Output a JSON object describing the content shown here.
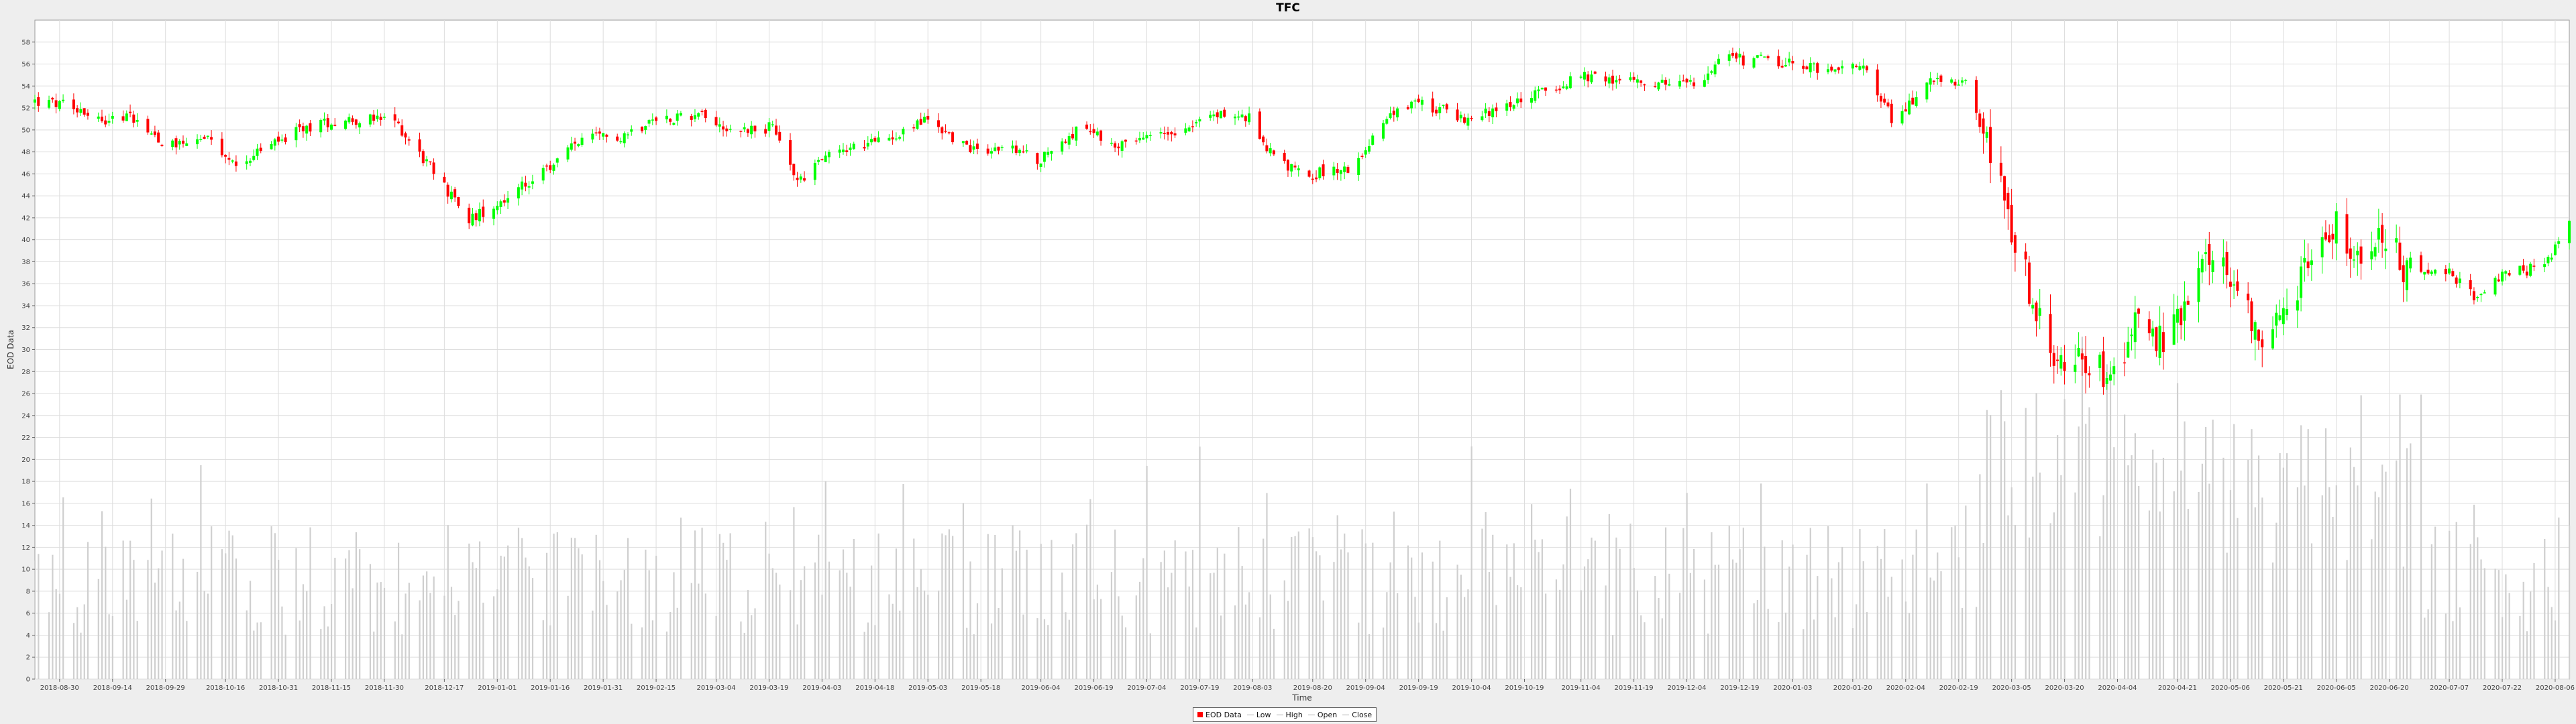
{
  "chart_data": {
    "type": "candlestick",
    "title": "TFC",
    "xlabel": "Time",
    "ylabel": "EOD Data",
    "ylim": [
      0,
      60
    ],
    "y_ticks": [
      0,
      2,
      4,
      6,
      8,
      10,
      12,
      14,
      16,
      18,
      20,
      22,
      24,
      26,
      28,
      30,
      32,
      34,
      36,
      38,
      40,
      42,
      44,
      46,
      48,
      50,
      52,
      54,
      56,
      58
    ],
    "x_range": [
      "2018-08-23",
      "2020-08-10"
    ],
    "x_ticks": [
      "2018-08-30",
      "2018-09-14",
      "2018-09-29",
      "2018-10-16",
      "2018-10-31",
      "2018-11-15",
      "2018-11-30",
      "2018-12-17",
      "2019-01-01",
      "2019-01-16",
      "2019-01-31",
      "2019-02-15",
      "2019-03-04",
      "2019-03-19",
      "2019-04-03",
      "2019-04-18",
      "2019-05-03",
      "2019-05-18",
      "2019-06-04",
      "2019-06-19",
      "2019-07-04",
      "2019-07-19",
      "2019-08-03",
      "2019-08-20",
      "2019-09-04",
      "2019-09-19",
      "2019-10-04",
      "2019-10-19",
      "2019-11-04",
      "2019-11-19",
      "2019-12-04",
      "2019-12-19",
      "2020-01-03",
      "2020-01-20",
      "2020-02-04",
      "2020-02-19",
      "2020-03-05",
      "2020-03-20",
      "2020-04-04",
      "2020-04-21",
      "2020-05-06",
      "2020-05-21",
      "2020-06-05",
      "2020-06-20",
      "2020-07-07",
      "2020-07-22",
      "2020-08-06"
    ],
    "price_path": [
      {
        "date": "2018-08-23",
        "close": 52.6
      },
      {
        "date": "2018-09-05",
        "close": 52.0
      },
      {
        "date": "2018-09-10",
        "close": 51.0
      },
      {
        "date": "2018-09-20",
        "close": 51.2
      },
      {
        "date": "2018-09-29",
        "close": 48.7
      },
      {
        "date": "2018-10-10",
        "close": 49.3
      },
      {
        "date": "2018-10-18",
        "close": 46.8
      },
      {
        "date": "2018-10-28",
        "close": 48.5
      },
      {
        "date": "2018-11-10",
        "close": 50.5
      },
      {
        "date": "2018-11-20",
        "close": 51.0
      },
      {
        "date": "2018-12-03",
        "close": 50.8
      },
      {
        "date": "2018-12-12",
        "close": 47.0
      },
      {
        "date": "2018-12-24",
        "close": 41.8
      },
      {
        "date": "2019-01-04",
        "close": 44.0
      },
      {
        "date": "2019-01-14",
        "close": 46.0
      },
      {
        "date": "2019-01-24",
        "close": 49.0
      },
      {
        "date": "2019-02-05",
        "close": 49.5
      },
      {
        "date": "2019-02-15",
        "close": 51.0
      },
      {
        "date": "2019-02-28",
        "close": 51.5
      },
      {
        "date": "2019-03-08",
        "close": 50.0
      },
      {
        "date": "2019-03-20",
        "close": 50.2
      },
      {
        "date": "2019-03-27",
        "close": 45.3
      },
      {
        "date": "2019-04-05",
        "close": 48.0
      },
      {
        "date": "2019-04-18",
        "close": 48.8
      },
      {
        "date": "2019-05-03",
        "close": 51.0
      },
      {
        "date": "2019-05-14",
        "close": 48.4
      },
      {
        "date": "2019-05-25",
        "close": 48.3
      },
      {
        "date": "2019-06-04",
        "close": 47.3
      },
      {
        "date": "2019-06-14",
        "close": 50.0
      },
      {
        "date": "2019-06-28",
        "close": 48.5
      },
      {
        "date": "2019-07-10",
        "close": 49.8
      },
      {
        "date": "2019-07-25",
        "close": 51.5
      },
      {
        "date": "2019-08-02",
        "close": 51.0
      },
      {
        "date": "2019-08-10",
        "close": 47.0
      },
      {
        "date": "2019-08-20",
        "close": 46.0
      },
      {
        "date": "2019-08-30",
        "close": 46.5
      },
      {
        "date": "2019-09-10",
        "close": 51.0
      },
      {
        "date": "2019-09-20",
        "close": 52.5
      },
      {
        "date": "2019-10-02",
        "close": 51.0
      },
      {
        "date": "2019-10-15",
        "close": 52.5
      },
      {
        "date": "2019-11-05",
        "close": 54.8
      },
      {
        "date": "2019-11-20",
        "close": 54.5
      },
      {
        "date": "2019-12-05",
        "close": 54.0
      },
      {
        "date": "2019-12-15",
        "close": 56.5
      },
      {
        "date": "2019-12-28",
        "close": 56.3
      },
      {
        "date": "2020-01-10",
        "close": 55.5
      },
      {
        "date": "2020-01-24",
        "close": 55.5
      },
      {
        "date": "2020-02-01",
        "close": 50.5
      },
      {
        "date": "2020-02-10",
        "close": 54.5
      },
      {
        "date": "2020-02-22",
        "close": 54.0
      },
      {
        "date": "2020-02-28",
        "close": 47.5
      },
      {
        "date": "2020-03-06",
        "close": 40.0
      },
      {
        "date": "2020-03-11",
        "close": 34.5
      },
      {
        "date": "2020-03-18",
        "close": 28.0
      },
      {
        "date": "2020-03-25",
        "close": 29.5
      },
      {
        "date": "2020-04-01",
        "close": 27.5
      },
      {
        "date": "2020-04-09",
        "close": 32.0
      },
      {
        "date": "2020-04-17",
        "close": 30.5
      },
      {
        "date": "2020-04-24",
        "close": 34.0
      },
      {
        "date": "2020-04-30",
        "close": 38.5
      },
      {
        "date": "2020-05-07",
        "close": 35.5
      },
      {
        "date": "2020-05-14",
        "close": 31.5
      },
      {
        "date": "2020-05-21",
        "close": 33.5
      },
      {
        "date": "2020-05-28",
        "close": 37.5
      },
      {
        "date": "2020-06-05",
        "close": 42.0
      },
      {
        "date": "2020-06-11",
        "close": 37.5
      },
      {
        "date": "2020-06-18",
        "close": 41.0
      },
      {
        "date": "2020-06-25",
        "close": 37.0
      },
      {
        "date": "2020-07-05",
        "close": 37.5
      },
      {
        "date": "2020-07-14",
        "close": 35.0
      },
      {
        "date": "2020-07-24",
        "close": 37.0
      },
      {
        "date": "2020-08-03",
        "close": 37.5
      },
      {
        "date": "2020-08-10",
        "close": 41.5
      }
    ],
    "volume_note_scale": "volume bars share the same axis",
    "colors": {
      "up": "#00ff00",
      "down": "#ff0000",
      "volume": "#cfcfcf",
      "grid": "#dddddd",
      "plot_bg": "#ffffff"
    }
  },
  "legend": {
    "items": [
      {
        "label": "EOD Data",
        "kind": "box",
        "color": "#ff0000"
      },
      {
        "label": "Low",
        "kind": "line",
        "color": "#aaaaaa"
      },
      {
        "label": "High",
        "kind": "line",
        "color": "#aaaaaa"
      },
      {
        "label": "Open",
        "kind": "line",
        "color": "#aaaaaa"
      },
      {
        "label": "Close",
        "kind": "line",
        "color": "#aaaaaa"
      }
    ]
  }
}
